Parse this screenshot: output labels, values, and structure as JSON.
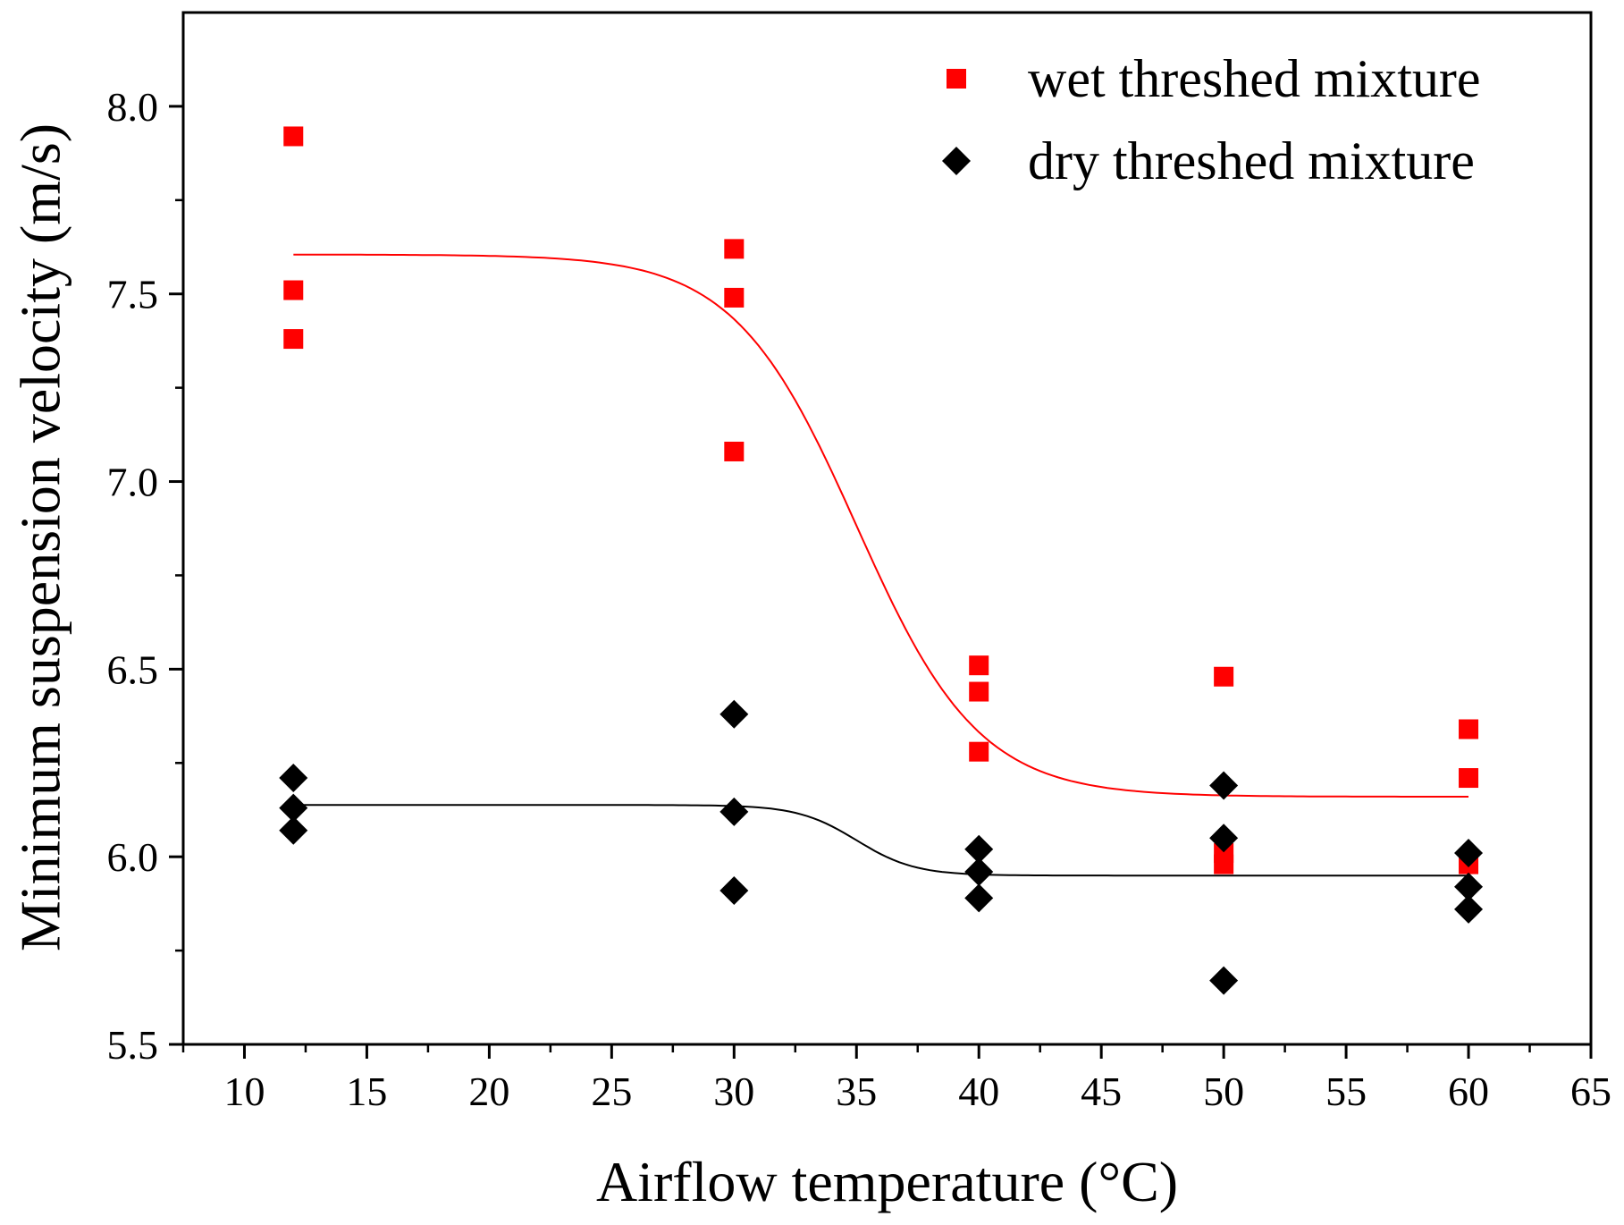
{
  "chart_data": {
    "type": "scatter",
    "title": "",
    "xlabel": "Airflow temperature (°C)",
    "ylabel": "Minimum suspension  velocity (m/s)",
    "xlim": [
      7.5,
      65
    ],
    "ylim": [
      5.5,
      8.25
    ],
    "xticks": [
      10,
      15,
      20,
      25,
      30,
      35,
      40,
      45,
      50,
      55,
      60,
      65
    ],
    "yticks": [
      5.5,
      6.0,
      6.5,
      7.0,
      7.5,
      8.0
    ],
    "xtick_labels": [
      "10",
      "15",
      "20",
      "25",
      "30",
      "35",
      "40",
      "45",
      "50",
      "55",
      "60",
      "65"
    ],
    "ytick_labels": [
      "5.5",
      "6.0",
      "6.5",
      "7.0",
      "7.5",
      "8.0"
    ],
    "grid": false,
    "legend_position": "top-right",
    "series": [
      {
        "name": "wet threshed mixture",
        "marker": "square",
        "color": "#ff0000",
        "points": [
          [
            12,
            7.92
          ],
          [
            12,
            7.51
          ],
          [
            12,
            7.38
          ],
          [
            30,
            7.62
          ],
          [
            30,
            7.49
          ],
          [
            30,
            7.08
          ],
          [
            40,
            6.51
          ],
          [
            40,
            6.44
          ],
          [
            40,
            6.28
          ],
          [
            50,
            6.48
          ],
          [
            50,
            6.01
          ],
          [
            50,
            5.98
          ],
          [
            60,
            6.34
          ],
          [
            60,
            6.21
          ],
          [
            60,
            5.98
          ]
        ],
        "fit": {
          "type": "sigmoid",
          "x_range": [
            12,
            60
          ],
          "top": 7.605,
          "bottom": 6.16,
          "center": 35,
          "width": 2.5
        }
      },
      {
        "name": "dry threshed mixture",
        "marker": "diamond",
        "color": "#000000",
        "points": [
          [
            12,
            6.21
          ],
          [
            12,
            6.13
          ],
          [
            12,
            6.07
          ],
          [
            30,
            6.38
          ],
          [
            30,
            6.12
          ],
          [
            30,
            5.91
          ],
          [
            40,
            6.02
          ],
          [
            40,
            5.96
          ],
          [
            40,
            5.89
          ],
          [
            50,
            6.19
          ],
          [
            50,
            6.05
          ],
          [
            50,
            5.67
          ],
          [
            60,
            6.01
          ],
          [
            60,
            5.92
          ],
          [
            60,
            5.86
          ]
        ],
        "fit": {
          "type": "sigmoid",
          "x_range": [
            12,
            60
          ],
          "top": 6.138,
          "bottom": 5.95,
          "center": 35,
          "width": 1.2
        }
      }
    ]
  }
}
